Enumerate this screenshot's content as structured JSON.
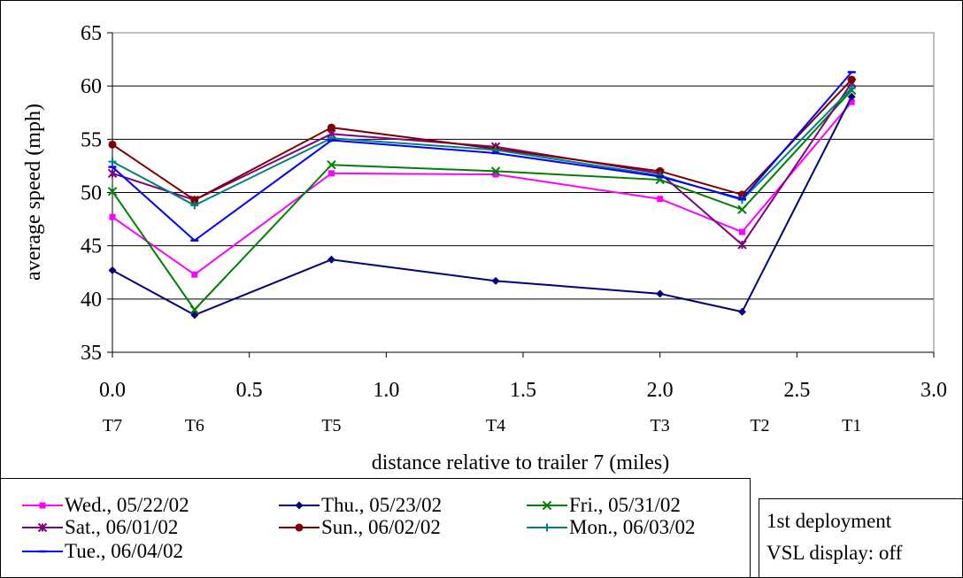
{
  "chart_data": {
    "type": "line",
    "xlabel": "distance relative to trailer 7 (miles)",
    "ylabel": "average speed (mph)",
    "xlim": [
      0.0,
      3.0
    ],
    "ylim": [
      35,
      65
    ],
    "x_ticks": [
      {
        "value": 0.0,
        "label": "0.0"
      },
      {
        "value": 0.5,
        "label": "0.5"
      },
      {
        "value": 1.0,
        "label": "1.0"
      },
      {
        "value": 1.5,
        "label": "1.5"
      },
      {
        "value": 2.0,
        "label": "2.0"
      },
      {
        "value": 2.5,
        "label": "2.5"
      },
      {
        "value": 3.0,
        "label": "3.0"
      }
    ],
    "y_ticks": [
      35,
      40,
      45,
      50,
      55,
      60,
      65
    ],
    "grid": "horizontal major gridlines",
    "x": [
      0.0,
      0.3,
      0.8,
      1.4,
      2.0,
      2.3,
      2.7
    ],
    "trailer_labels": [
      "T7",
      "T6",
      "T5",
      "T4",
      "T3",
      "T2",
      "T1"
    ],
    "series": [
      {
        "name": "Wed., 05/22/02",
        "color": "#FF00FF",
        "marker": "square",
        "values": [
          47.7,
          42.3,
          51.8,
          51.7,
          49.4,
          46.3,
          58.5
        ]
      },
      {
        "name": "Thu., 05/23/02",
        "color": "#000080",
        "marker": "diamond",
        "values": [
          42.7,
          38.5,
          43.7,
          41.7,
          40.5,
          38.8,
          59.0
        ]
      },
      {
        "name": "Fri., 05/31/02",
        "color": "#008000",
        "marker": "x",
        "values": [
          50.1,
          39.0,
          52.6,
          52.0,
          51.2,
          48.4,
          59.6
        ]
      },
      {
        "name": "Sat., 06/01/02",
        "color": "#800080",
        "marker": "asterisk",
        "values": [
          51.8,
          49.3,
          55.5,
          54.3,
          51.8,
          45.1,
          60.3
        ]
      },
      {
        "name": "Sun., 06/02/02",
        "color": "#800000",
        "marker": "circle",
        "values": [
          54.5,
          49.3,
          56.1,
          54.1,
          52.0,
          49.8,
          60.6
        ]
      },
      {
        "name": "Mon., 06/03/02",
        "color": "#008080",
        "marker": "plus",
        "values": [
          52.9,
          48.8,
          55.1,
          54.0,
          51.6,
          49.3,
          59.8
        ]
      },
      {
        "name": "Tue., 06/04/02",
        "color": "#0000FF",
        "marker": "dash",
        "values": [
          52.4,
          45.5,
          54.9,
          53.7,
          51.5,
          49.4,
          61.3
        ]
      }
    ],
    "legend_position": "bottom"
  },
  "annotation": {
    "line1": "1st deployment",
    "line2": "VSL display: off"
  }
}
